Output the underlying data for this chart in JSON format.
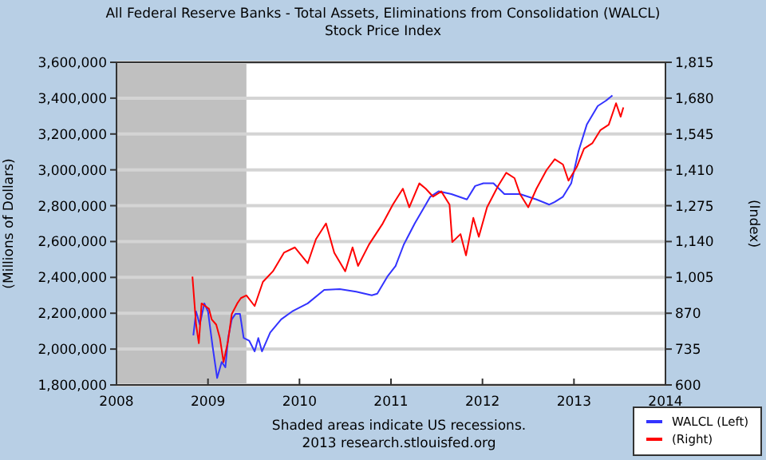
{
  "chart_data": {
    "type": "line",
    "title": "All Federal Reserve Banks - Total Assets, Eliminations from Consolidation (WALCL)",
    "subtitle": "Stock Price Index",
    "ylabel": "(Millions of Dollars)",
    "y2label": "(Index)",
    "xlim": [
      2008,
      2014
    ],
    "xticks": [
      2008,
      2009,
      2010,
      2011,
      2012,
      2013,
      2014
    ],
    "ylim": [
      1800000,
      3600000
    ],
    "yticks": [
      {
        "value": 1800000,
        "label": "1,800,000"
      },
      {
        "value": 2000000,
        "label": "2,000,000"
      },
      {
        "value": 2200000,
        "label": "2,200,000"
      },
      {
        "value": 2400000,
        "label": "2,400,000"
      },
      {
        "value": 2600000,
        "label": "2,600,000"
      },
      {
        "value": 2800000,
        "label": "2,800,000"
      },
      {
        "value": 3000000,
        "label": "3,000,000"
      },
      {
        "value": 3200000,
        "label": "3,200,000"
      },
      {
        "value": 3400000,
        "label": "3,400,000"
      },
      {
        "value": 3600000,
        "label": "3,600,000"
      }
    ],
    "y2lim": [
      600,
      1815
    ],
    "y2ticks": [
      {
        "value": 600,
        "label": "600"
      },
      {
        "value": 735,
        "label": "735"
      },
      {
        "value": 870,
        "label": "870"
      },
      {
        "value": 1005,
        "label": "1,005"
      },
      {
        "value": 1140,
        "label": "1,140"
      },
      {
        "value": 1275,
        "label": "1,275"
      },
      {
        "value": 1410,
        "label": "1,410"
      },
      {
        "value": 1545,
        "label": "1,545"
      },
      {
        "value": 1680,
        "label": "1,680"
      },
      {
        "value": 1815,
        "label": "1,815"
      }
    ],
    "grid": "y",
    "legend": "bottom right",
    "bands": [
      {
        "axis": "x",
        "from": 2008,
        "to": 2009.42,
        "color": "#c0c0c0"
      }
    ],
    "annotations": [
      "Shaded areas indicate US recessions.",
      "2013 research.stlouisfed.org"
    ],
    "series": [
      {
        "name": "WALCL (Left)",
        "color": "#3333ff",
        "x": [
          2008.84,
          2008.87,
          2008.91,
          2008.96,
          2009.0,
          2009.05,
          2009.1,
          2009.15,
          2009.19,
          2009.22,
          2009.26,
          2009.3,
          2009.35,
          2009.39,
          2009.45,
          2009.51,
          2009.55,
          2009.59,
          2009.68,
          2009.8,
          2009.92,
          2010.09,
          2010.27,
          2010.44,
          2010.62,
          2010.79,
          2010.85,
          2010.96,
          2011.05,
          2011.14,
          2011.26,
          2011.43,
          2011.52,
          2011.66,
          2011.83,
          2011.92,
          2012.01,
          2012.12,
          2012.24,
          2012.41,
          2012.59,
          2012.73,
          2012.79,
          2012.88,
          2012.97,
          2013.05,
          2013.14,
          2013.26,
          2013.35,
          2013.42
        ],
        "values": [
          2077000,
          2210000,
          2136000,
          2255000,
          2210000,
          2017000,
          1839000,
          1928000,
          1898000,
          2062000,
          2166000,
          2196000,
          2196000,
          2062000,
          2047000,
          1987000,
          2062000,
          1987000,
          2092000,
          2166000,
          2210000,
          2255000,
          2330000,
          2335000,
          2320000,
          2300000,
          2309000,
          2404000,
          2463000,
          2583000,
          2701000,
          2850000,
          2880000,
          2865000,
          2835000,
          2910000,
          2925000,
          2925000,
          2865000,
          2865000,
          2835000,
          2806000,
          2821000,
          2850000,
          2925000,
          3104000,
          3252000,
          3356000,
          3386000,
          3415000
        ]
      },
      {
        "name": "(Right)",
        "color": "#ff0000",
        "axis": "y2",
        "x": [
          2008.83,
          2008.87,
          2008.9,
          2008.93,
          2008.97,
          2009.01,
          2009.04,
          2009.09,
          2009.13,
          2009.17,
          2009.22,
          2009.26,
          2009.32,
          2009.36,
          2009.42,
          2009.51,
          2009.6,
          2009.71,
          2009.83,
          2009.95,
          2010.09,
          2010.18,
          2010.29,
          2010.38,
          2010.5,
          2010.58,
          2010.64,
          2010.76,
          2010.91,
          2011.02,
          2011.13,
          2011.2,
          2011.31,
          2011.38,
          2011.46,
          2011.55,
          2011.64,
          2011.67,
          2011.76,
          2011.82,
          2011.9,
          2011.96,
          2012.05,
          2012.17,
          2012.26,
          2012.35,
          2012.41,
          2012.5,
          2012.59,
          2012.7,
          2012.79,
          2012.88,
          2012.94,
          2013.03,
          2013.11,
          2013.2,
          2013.29,
          2013.38,
          2013.46,
          2013.51,
          2013.54
        ],
        "values": [
          1008,
          827,
          757,
          907,
          897,
          887,
          847,
          827,
          777,
          686,
          767,
          867,
          907,
          927,
          937,
          897,
          988,
          1028,
          1098,
          1118,
          1058,
          1149,
          1208,
          1098,
          1028,
          1118,
          1048,
          1129,
          1208,
          1279,
          1339,
          1269,
          1359,
          1339,
          1309,
          1329,
          1279,
          1138,
          1168,
          1088,
          1229,
          1158,
          1269,
          1349,
          1399,
          1379,
          1319,
          1269,
          1339,
          1409,
          1450,
          1430,
          1369,
          1420,
          1490,
          1510,
          1560,
          1580,
          1661,
          1610,
          1645
        ]
      }
    ]
  }
}
